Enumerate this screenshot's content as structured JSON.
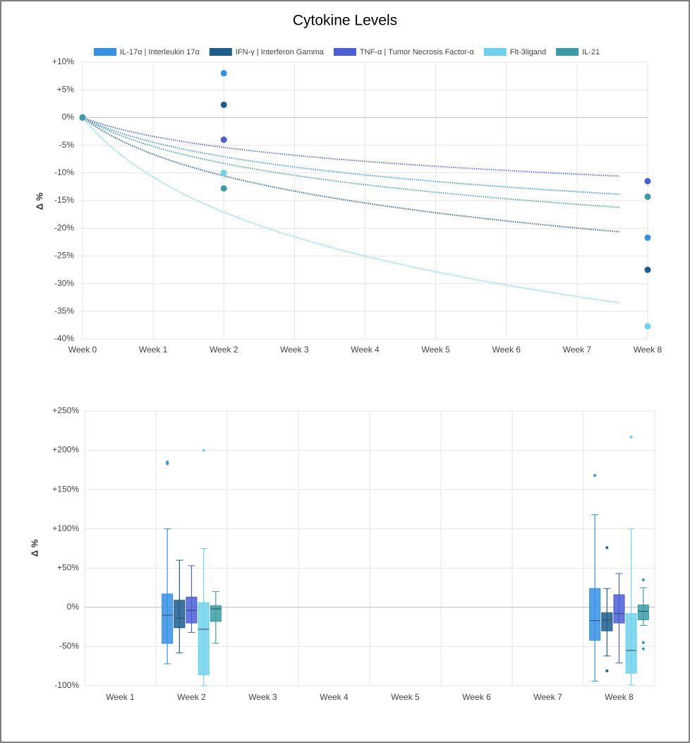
{
  "chart_data": [
    {
      "type": "line",
      "title": "Cytokine Levels",
      "ylabel": "Δ %",
      "categories": [
        "Week 0",
        "Week 1",
        "Week 2",
        "Week 3",
        "Week 4",
        "Week 5",
        "Week 6",
        "Week 7",
        "Week 8"
      ],
      "series": [
        {
          "name": "IL-17α | Interleukin 17α",
          "color": "#3591e6",
          "values": [
            0,
            null,
            8,
            null,
            null,
            null,
            null,
            null,
            -21.7
          ]
        },
        {
          "name": "IFN-γ | Interferon Gamma",
          "color": "#1d5d8c",
          "values": [
            0,
            null,
            2.3,
            null,
            null,
            null,
            null,
            null,
            -27.5
          ]
        },
        {
          "name": "TNF-α | Tumor Necrosis Factor-α",
          "color": "#4a5ed6",
          "values": [
            0,
            null,
            -4,
            null,
            null,
            null,
            null,
            null,
            -11.5
          ]
        },
        {
          "name": "Flt-3ligand",
          "color": "#6fd2ec",
          "values": [
            0,
            null,
            -10,
            null,
            null,
            null,
            null,
            null,
            -37.7
          ]
        },
        {
          "name": "IL-21",
          "color": "#3a9da5",
          "values": [
            0,
            null,
            -12.8,
            null,
            null,
            null,
            null,
            null,
            -14.3
          ]
        }
      ],
      "ylim": [
        -40,
        10
      ],
      "yticks": [
        {
          "value": 10,
          "label": "+10%"
        },
        {
          "value": 5,
          "label": "+5%"
        },
        {
          "value": 0,
          "label": "0%"
        },
        {
          "value": -5,
          "label": "-5%"
        },
        {
          "value": -10,
          "label": "-10%"
        },
        {
          "value": -15,
          "label": "-15%"
        },
        {
          "value": -20,
          "label": "-20%"
        },
        {
          "value": -25,
          "label": "-25%"
        },
        {
          "value": -30,
          "label": "-30%"
        },
        {
          "value": -35,
          "label": "-35%"
        },
        {
          "value": -40,
          "label": "-40%"
        }
      ],
      "grid": true,
      "trendline": true,
      "legend": "top"
    },
    {
      "type": "box",
      "ylabel": "Δ %",
      "categories": [
        "Week 1",
        "Week 2",
        "Week 3",
        "Week 4",
        "Week 5",
        "Week 6",
        "Week 7",
        "Week 8"
      ],
      "series": [
        {
          "color": "#3591e6",
          "values": [
            null,
            {
              "min": -72,
              "q1": -46,
              "median": -10,
              "q3": 17,
              "max": 100,
              "outliers": [
                185,
                183
              ]
            },
            null,
            null,
            null,
            null,
            null,
            {
              "min": -94,
              "q1": -42,
              "median": -17,
              "q3": 24,
              "max": 118,
              "outliers": [
                168
              ]
            }
          ]
        },
        {
          "color": "#1d5d8c",
          "values": [
            null,
            {
              "min": -58,
              "q1": -26,
              "median": -14,
              "q3": 9,
              "max": 60,
              "outliers": []
            },
            null,
            null,
            null,
            null,
            null,
            {
              "min": -62,
              "q1": -30,
              "median": -16,
              "q3": -7,
              "max": 24,
              "outliers": [
                76,
                -81
              ]
            }
          ]
        },
        {
          "color": "#4a5ed6",
          "values": [
            null,
            {
              "min": -32,
              "q1": -20,
              "median": -4,
              "q3": 13,
              "max": 53,
              "outliers": []
            },
            null,
            null,
            null,
            null,
            null,
            {
              "min": -71,
              "q1": -20,
              "median": -8,
              "q3": 16,
              "max": 43,
              "outliers": []
            }
          ]
        },
        {
          "color": "#6fd2ec",
          "values": [
            null,
            {
              "min": -100,
              "q1": -86,
              "median": -28,
              "q3": 6,
              "max": 75,
              "outliers": [
                200
              ]
            },
            null,
            null,
            null,
            null,
            null,
            {
              "min": -99,
              "q1": -84,
              "median": -55,
              "q3": -8,
              "max": 100,
              "outliers": [
                217
              ]
            }
          ]
        },
        {
          "color": "#3a9da5",
          "values": [
            null,
            {
              "min": -46,
              "q1": -18,
              "median": -2,
              "q3": 2,
              "max": 20,
              "outliers": []
            },
            null,
            null,
            null,
            null,
            null,
            {
              "min": -23,
              "q1": -16,
              "median": -5,
              "q3": 3,
              "max": 25,
              "outliers": [
                35,
                -45,
                -53
              ]
            }
          ]
        }
      ],
      "ylim": [
        -100,
        250
      ],
      "yticks": [
        {
          "value": 250,
          "label": "+250%"
        },
        {
          "value": 200,
          "label": "+200%"
        },
        {
          "value": 150,
          "label": "+150%"
        },
        {
          "value": 100,
          "label": "+100%"
        },
        {
          "value": 50,
          "label": "+50%"
        },
        {
          "value": 0,
          "label": "0%"
        },
        {
          "value": -50,
          "label": "-50%"
        },
        {
          "value": -100,
          "label": "-100%"
        }
      ],
      "grid": true
    }
  ]
}
